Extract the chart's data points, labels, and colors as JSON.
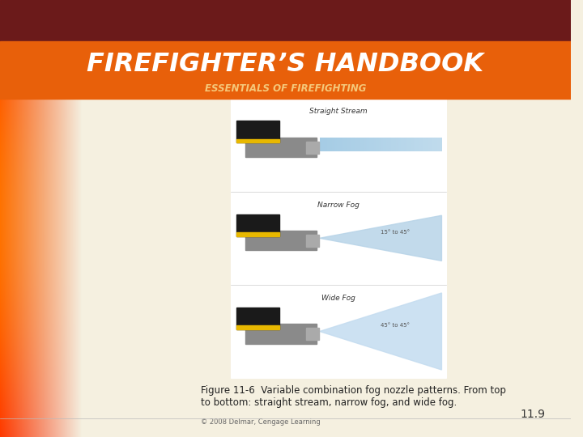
{
  "title_main": "FIREFIGHTER’S HANDBOOK",
  "title_sub": "ESSENTIALS OF FIREFIGHTING",
  "title_bg_color": "#E8600A",
  "title_top_bar_color": "#6B1A1A",
  "title_main_color": "#FFFFFF",
  "title_sub_color": "#F5C87A",
  "bg_color": "#F5F0E0",
  "caption_text_line1": "Figure 11-6  Variable combination fog nozzle patterns. From top",
  "caption_text_line2": "to bottom: straight stream, narrow fog, and wide fog.",
  "page_number": "11.9",
  "copyright_text": "© 2008 Delmar, Cengage Learning",
  "stream_labels": [
    "Straight Stream",
    "Narrow Fog",
    "Wide Fog"
  ],
  "angle_label_narrow": "15° to 45°",
  "angle_label_wide": "45° to 45°",
  "panel_l": 0.405,
  "panel_r": 0.782,
  "panel_b": 0.135,
  "panel_t": 0.775
}
